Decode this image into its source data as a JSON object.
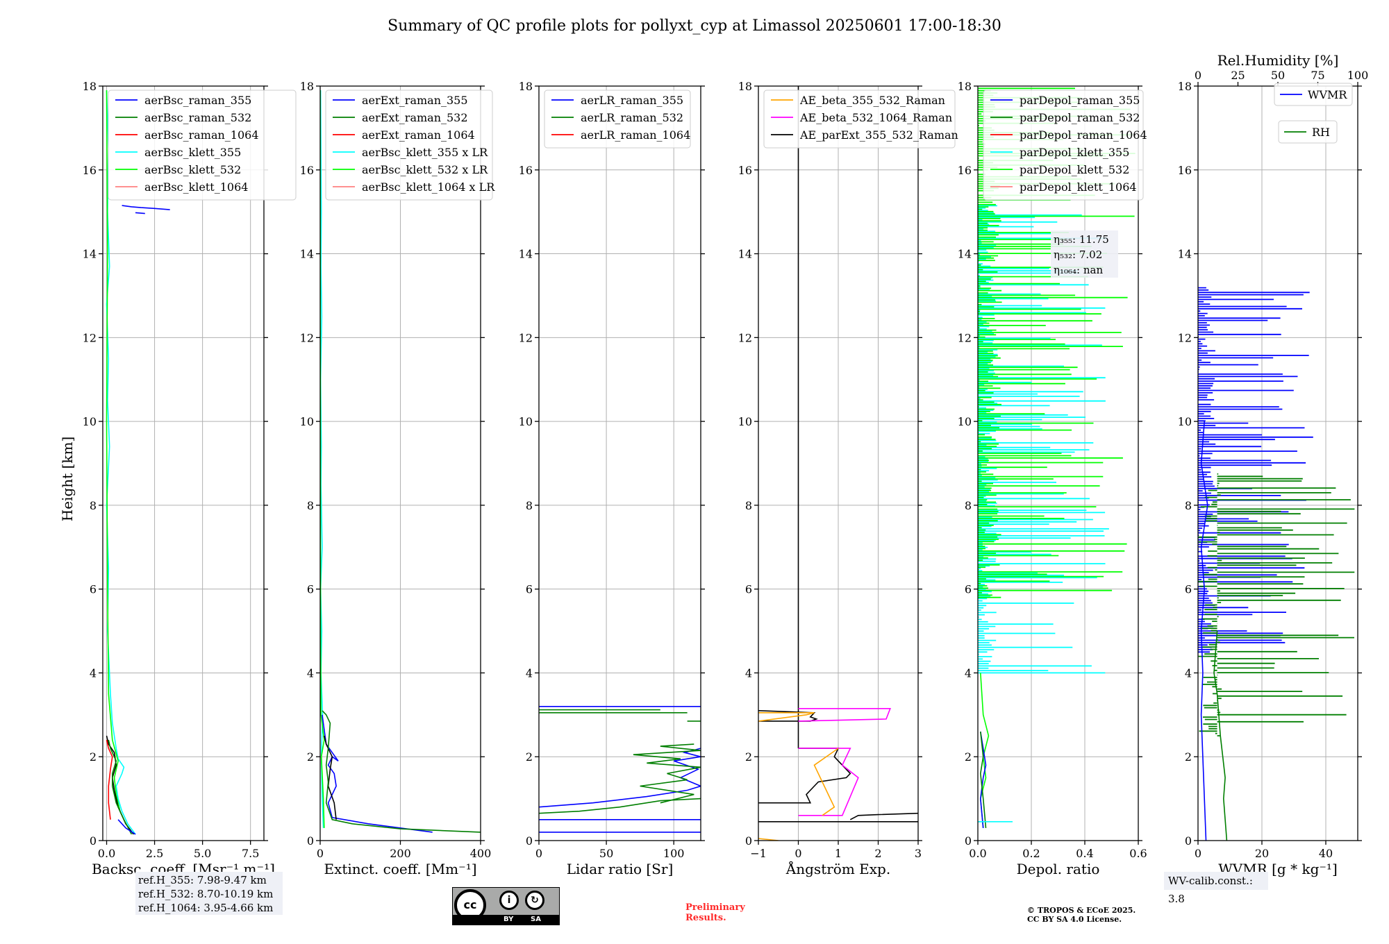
{
  "figure_title": "Summary of QC profile plots for pollyxt_cyp at Limassol 20250601 17:00-18:30",
  "ylabel": "Height [km]",
  "ref_heights": [
    "ref.H_355: 7.98-9.47 km",
    "ref.H_532: 8.70-10.19 km",
    "ref.H_1064: 3.95-4.66 km"
  ],
  "wv_calib": "WV-calib.const.: 3.8",
  "cc_license": {
    "circle": "cc",
    "by": "BY",
    "sa": "SA",
    "by_icon": "person-icon",
    "sa_icon": "share-alike-icon"
  },
  "preliminary": [
    "Preliminary",
    "Results."
  ],
  "copyright": [
    "© TROPOS & ECoE 2025.",
    "CC BY SA 4.0 License."
  ],
  "colors": {
    "blue": "#0000ff",
    "green": "#007f00",
    "red": "#ff0000",
    "cyan": "#00ffff",
    "lime": "#00ff00",
    "salmon": "#ff8080",
    "orange": "#ffa500",
    "magenta": "#ff00ff",
    "black": "#000000"
  },
  "chart_data": [
    {
      "type": "line",
      "xlabel": "Backsc. coeff. [Msr⁻¹ m⁻¹]",
      "xlim": [
        -0.2,
        8.2
      ],
      "ylim": [
        0,
        18
      ],
      "xticks": [
        "0.0",
        "2.5",
        "5.0",
        "7.5"
      ],
      "xtick_values": [
        0,
        2.5,
        5,
        7.5
      ],
      "yticks": [
        "0",
        "2",
        "4",
        "6",
        "8",
        "10",
        "12",
        "14",
        "16",
        "18"
      ],
      "legend": [
        "aerBsc_raman_355",
        "aerBsc_raman_532",
        "aerBsc_raman_1064",
        "aerBsc_klett_355",
        "aerBsc_klett_532",
        "aerBsc_klett_1064"
      ],
      "legend_colors": [
        "#0000ff",
        "#007f00",
        "#ff0000",
        "#00ffff",
        "#00ff00",
        "#ff8080"
      ],
      "series": [
        {
          "color": "#00ffff",
          "x": [
            1.5,
            1.1,
            0.8,
            0.6,
            0.5,
            0.8,
            0.9,
            0.6,
            0.5,
            0.3,
            0.2,
            0.05,
            0.1,
            0.0,
            0.15,
            0.05,
            0.1,
            0.0,
            0.15,
            0.05,
            0.1,
            0.0
          ],
          "y": [
            0.15,
            0.4,
            0.7,
            1.0,
            1.3,
            1.6,
            1.75,
            1.95,
            2.2,
            2.8,
            3.5,
            5.0,
            6.5,
            8.0,
            9.4,
            10.5,
            11.5,
            12.8,
            13.7,
            15.0,
            16.5,
            17.9
          ]
        },
        {
          "color": "#00ff00",
          "x": [
            1.4,
            1.0,
            0.7,
            0.5,
            0.4,
            0.6,
            0.3,
            0.1,
            0.05,
            0.0,
            0.05,
            0.0
          ],
          "y": [
            0.15,
            0.4,
            0.7,
            1.1,
            1.5,
            1.9,
            2.4,
            3.5,
            6.0,
            10.0,
            14.0,
            17.9
          ]
        },
        {
          "color": "#000000",
          "x": [
            1.4,
            1.0,
            0.6,
            0.4,
            0.3,
            0.5,
            0.4,
            0.1,
            0.0
          ],
          "y": [
            0.15,
            0.4,
            0.8,
            1.2,
            1.5,
            1.8,
            2.1,
            2.3,
            2.5
          ]
        },
        {
          "color": "#007f00",
          "x": [
            1.3,
            0.9,
            0.5,
            0.3,
            0.3,
            0.5,
            0.2,
            0.1
          ],
          "y": [
            0.15,
            0.5,
            0.9,
            1.3,
            1.6,
            1.9,
            2.2,
            2.4
          ]
        },
        {
          "color": "#ff0000",
          "x": [
            0.2,
            0.1,
            0.1,
            0.2,
            0.3,
            0.1,
            0.0
          ],
          "y": [
            0.5,
            0.9,
            1.3,
            1.7,
            2.0,
            2.2,
            2.4
          ]
        },
        {
          "color": "#0000ff",
          "x": [
            1.5,
            1.0,
            0.6
          ],
          "y": [
            0.15,
            0.3,
            0.5
          ]
        },
        {
          "color": "#0000ff",
          "x": [
            0.8,
            1.3,
            1.8,
            2.5,
            3.3
          ],
          "y": [
            15.15,
            15.12,
            15.1,
            15.08,
            15.05
          ]
        },
        {
          "color": "#0000ff",
          "x": [
            1.5,
            2.0
          ],
          "y": [
            14.98,
            14.96
          ]
        }
      ]
    },
    {
      "type": "line",
      "xlabel": "Extinct. coeff. [Mm⁻¹]",
      "xlim": [
        0,
        400
      ],
      "ylim": [
        0,
        18
      ],
      "xticks": [
        "0",
        "200",
        "400"
      ],
      "xtick_values": [
        0,
        200,
        400
      ],
      "yticks": [
        "0",
        "2",
        "4",
        "6",
        "8",
        "10",
        "12",
        "14",
        "16",
        "18"
      ],
      "legend": [
        "aerExt_raman_355",
        "aerExt_raman_532",
        "aerExt_raman_1064",
        "aerBsc_klett_355 x LR",
        "aerBsc_klett_532 x LR",
        "aerBsc_klett_1064 x LR"
      ],
      "legend_colors": [
        "#0000ff",
        "#007f00",
        "#ff0000",
        "#00ffff",
        "#00ff00",
        "#ff8080"
      ],
      "series": [
        {
          "color": "#00ffff",
          "x": [
            8,
            5,
            3,
            6,
            2,
            4,
            1,
            5,
            2,
            3,
            1,
            4,
            2,
            3,
            1
          ],
          "y": [
            0.3,
            1.0,
            2.0,
            3.0,
            4.0,
            5.0,
            6.0,
            7.0,
            8.5,
            9.4,
            11.0,
            12.5,
            13.7,
            15.0,
            17.9
          ]
        },
        {
          "color": "#00ff00",
          "x": [
            10,
            8,
            5,
            3,
            10,
            2,
            1,
            0
          ],
          "y": [
            0.3,
            1.0,
            1.6,
            2.0,
            2.4,
            3.0,
            5.0,
            17.9
          ]
        },
        {
          "color": "#0000ff",
          "x": [
            280,
            120,
            30,
            20,
            40,
            35,
            20,
            30,
            45,
            30,
            15,
            5
          ],
          "y": [
            0.2,
            0.4,
            0.55,
            0.9,
            1.3,
            1.6,
            1.8,
            2.0,
            1.9,
            2.1,
            2.3,
            3.0
          ]
        },
        {
          "color": "#000000",
          "x": [
            40,
            35,
            20,
            25,
            30,
            15,
            10
          ],
          "y": [
            0.5,
            0.9,
            1.3,
            1.7,
            2.0,
            2.3,
            2.5
          ]
        },
        {
          "color": "#007f00",
          "x": [
            400,
            200,
            80,
            30,
            15,
            20,
            15,
            20,
            25,
            15,
            5
          ],
          "y": [
            0.2,
            0.28,
            0.4,
            0.5,
            0.9,
            1.4,
            1.8,
            2.2,
            2.8,
            3.0,
            3.1
          ]
        }
      ]
    },
    {
      "type": "line",
      "xlabel": "Lidar ratio [Sr]",
      "xlim": [
        0,
        120
      ],
      "ylim": [
        0,
        18
      ],
      "xticks": [
        "0",
        "50",
        "100"
      ],
      "xtick_values": [
        0,
        50,
        100
      ],
      "yticks": [
        "0",
        "2",
        "4",
        "6",
        "8",
        "10",
        "12",
        "14",
        "16",
        "18"
      ],
      "legend": [
        "aerLR_raman_355",
        "aerLR_raman_532",
        "aerLR_raman_1064"
      ],
      "legend_colors": [
        "#0000ff",
        "#007f00",
        "#ff0000"
      ],
      "series": [
        {
          "color": "#0000ff",
          "x": [
            0,
            120
          ],
          "y": [
            0.2,
            0.2
          ]
        },
        {
          "color": "#0000ff",
          "x": [
            0,
            120
          ],
          "y": [
            0.5,
            0.5
          ]
        },
        {
          "color": "#0000ff",
          "x": [
            0,
            40,
            80,
            110,
            120
          ],
          "y": [
            0.8,
            0.9,
            1.05,
            1.2,
            1.3
          ]
        },
        {
          "color": "#0000ff",
          "x": [
            120,
            105,
            118,
            100,
            120,
            108,
            120
          ],
          "y": [
            1.3,
            1.5,
            1.7,
            1.9,
            2.0,
            2.1,
            2.2
          ]
        },
        {
          "color": "#0000ff",
          "x": [
            0,
            120
          ],
          "y": [
            3.2,
            3.2
          ]
        },
        {
          "color": "#007f00",
          "x": [
            0,
            30,
            60,
            90,
            120
          ],
          "y": [
            0.65,
            0.7,
            0.8,
            0.95,
            1.0
          ]
        },
        {
          "color": "#007f00",
          "x": [
            90,
            115,
            75,
            110,
            95,
            120,
            80,
            105,
            70,
            120,
            90,
            115
          ],
          "y": [
            0.9,
            1.1,
            1.3,
            1.45,
            1.6,
            1.75,
            1.85,
            1.95,
            2.05,
            2.15,
            2.25,
            2.3
          ]
        },
        {
          "color": "#007f00",
          "x": [
            0,
            110
          ],
          "y": [
            3.05,
            3.05
          ]
        },
        {
          "color": "#007f00",
          "x": [
            0,
            90
          ],
          "y": [
            3.12,
            3.12
          ]
        },
        {
          "color": "#007f00",
          "x": [
            110,
            120
          ],
          "y": [
            2.85,
            2.85
          ]
        }
      ]
    },
    {
      "type": "line",
      "xlabel": "Ångström Exp.",
      "xlim": [
        -1,
        3
      ],
      "ylim": [
        0,
        18
      ],
      "xticks": [
        "−1",
        "0",
        "1",
        "2",
        "3"
      ],
      "xtick_values": [
        -1,
        0,
        1,
        2,
        3
      ],
      "yticks": [
        "0",
        "2",
        "4",
        "6",
        "8",
        "10",
        "12",
        "14",
        "16",
        "18"
      ],
      "legend": [
        "AE_beta_355_532_Raman",
        "AE_beta_532_1064_Raman",
        "AE_parExt_355_532_Raman"
      ],
      "legend_colors": [
        "#ffa500",
        "#ff00ff",
        "#000000"
      ],
      "series": [
        {
          "color": "#000000",
          "x": [
            0,
            0
          ],
          "y": [
            2.2,
            18
          ]
        },
        {
          "color": "#000000",
          "x": [
            0,
            1.0,
            0.9,
            1.1,
            1.3,
            1.2,
            0.5,
            0.4,
            0.2,
            0.3,
            -1
          ],
          "y": [
            2.2,
            2.2,
            2.0,
            1.8,
            1.6,
            1.5,
            1.4,
            1.3,
            1.1,
            0.9,
            0.9
          ]
        },
        {
          "color": "#000000",
          "x": [
            -1,
            3
          ],
          "y": [
            0.45,
            0.45
          ]
        },
        {
          "color": "#000000",
          "x": [
            1.3,
            1.5,
            2,
            3
          ],
          "y": [
            0.5,
            0.6,
            0.62,
            0.65
          ]
        },
        {
          "color": "#000000",
          "x": [
            -1,
            0.4,
            0.3,
            0.45,
            0.3,
            -1
          ],
          "y": [
            3.1,
            3.05,
            2.95,
            2.9,
            2.85,
            2.85
          ]
        },
        {
          "color": "#ff00ff",
          "x": [
            0,
            1.3,
            1.1,
            1.5,
            1.1,
            0.0
          ],
          "y": [
            2.2,
            2.2,
            1.8,
            1.5,
            0.6,
            0.6
          ]
        },
        {
          "color": "#ff00ff",
          "x": [
            0,
            2.3,
            2.2,
            0.0
          ],
          "y": [
            3.15,
            3.15,
            2.9,
            2.85
          ]
        },
        {
          "color": "#ffa500",
          "x": [
            1.0,
            0.4,
            0.6,
            0.8,
            0.9,
            0.6
          ],
          "y": [
            2.2,
            1.8,
            1.4,
            1.0,
            0.8,
            0.6
          ]
        },
        {
          "color": "#ffa500",
          "x": [
            -1,
            0.2,
            0.4,
            -1
          ],
          "y": [
            2.85,
            3.0,
            3.05,
            3.05
          ]
        },
        {
          "color": "#ffa500",
          "x": [
            -1,
            -0.5
          ],
          "y": [
            0.05,
            0.0
          ]
        }
      ]
    },
    {
      "type": "line",
      "xlabel": "Depol. ratio",
      "xlim": [
        0,
        0.6
      ],
      "ylim": [
        0,
        18
      ],
      "xticks": [
        "0.0",
        "0.2",
        "0.4",
        "0.6"
      ],
      "xtick_values": [
        0,
        0.2,
        0.4,
        0.6
      ],
      "yticks": [
        "0",
        "2",
        "4",
        "6",
        "8",
        "10",
        "12",
        "14",
        "16",
        "18"
      ],
      "legend": [
        "parDepol_raman_355",
        "parDepol_raman_532",
        "parDepol_raman_1064",
        "parDepol_klett_355",
        "parDepol_klett_532",
        "parDepol_klett_1064"
      ],
      "legend_colors": [
        "#0000ff",
        "#007f00",
        "#ff0000",
        "#00ffff",
        "#00ff00",
        "#ff8080"
      ],
      "annotation": [
        "η₃₅₅: 11.75",
        "η₅₃₂: 7.02",
        "η₁₀₆₄: nan"
      ],
      "series": [
        {
          "color": "#00ff00",
          "x": [
            0.02,
            0.01,
            0.03,
            0.02,
            0.04,
            0.02,
            0.01
          ],
          "y": [
            0.3,
            1.0,
            1.5,
            2.0,
            2.5,
            3.0,
            4.0
          ]
        },
        {
          "color": "#0000ff",
          "x": [
            0.02,
            0.01,
            0.02,
            0.03,
            0.02,
            0.01
          ],
          "y": [
            0.3,
            1.0,
            1.5,
            1.8,
            2.2,
            2.6
          ]
        },
        {
          "color": "#007f00",
          "x": [
            0.03,
            0.02,
            0.01,
            0.02,
            0.01
          ],
          "y": [
            0.3,
            1.0,
            1.6,
            2.0,
            2.6
          ]
        },
        {
          "color": "#00ffff",
          "x": [
            0,
            0.13
          ],
          "y": [
            0.45,
            0.45
          ]
        }
      ],
      "spike_bands": [
        {
          "color": "#00ffff",
          "ymin": 4.0,
          "ymax": 15.2,
          "max": 0.5
        },
        {
          "color": "#00ff00",
          "ymin": 5.8,
          "ymax": 18.0,
          "max": 0.6
        }
      ]
    },
    {
      "type": "line",
      "xlabel": "WVMR [g * kg⁻¹]",
      "top_xlabel": "Rel.Humidity [%]",
      "xlim": [
        0,
        50
      ],
      "ylim": [
        0,
        18
      ],
      "xticks": [
        "0",
        "20",
        "40"
      ],
      "xtick_values": [
        0,
        20,
        40
      ],
      "top_xticks": [
        "0",
        "25",
        "50",
        "75",
        "100"
      ],
      "top_xtick_values": [
        0,
        25,
        50,
        75,
        100
      ],
      "yticks": [
        "0",
        "2",
        "4",
        "6",
        "8",
        "10",
        "12",
        "14",
        "16",
        "18"
      ],
      "legend": [
        "WVMR",
        "RH"
      ],
      "legend_colors": [
        "#0000ff",
        "#007f00"
      ],
      "series": [
        {
          "color": "#0000ff",
          "x": [
            2.5,
            2,
            1.5,
            1,
            1.5,
            1,
            2,
            1,
            3,
            1,
            2
          ],
          "y": [
            0,
            1,
            2,
            3,
            4,
            5,
            6,
            7,
            8,
            9,
            10
          ]
        },
        {
          "color": "#007f00",
          "x": [
            9,
            8,
            8.5,
            7,
            6,
            5,
            6
          ],
          "y": [
            0,
            1,
            1.5,
            2.5,
            3.5,
            4.0,
            5.0
          ]
        }
      ],
      "spike_bands": [
        {
          "color": "#0000ff",
          "ymin": 4.5,
          "ymax": 13.3,
          "max": 37
        },
        {
          "color": "#007f00",
          "ymin": 2.5,
          "ymax": 8.8,
          "max": 50
        }
      ]
    }
  ]
}
